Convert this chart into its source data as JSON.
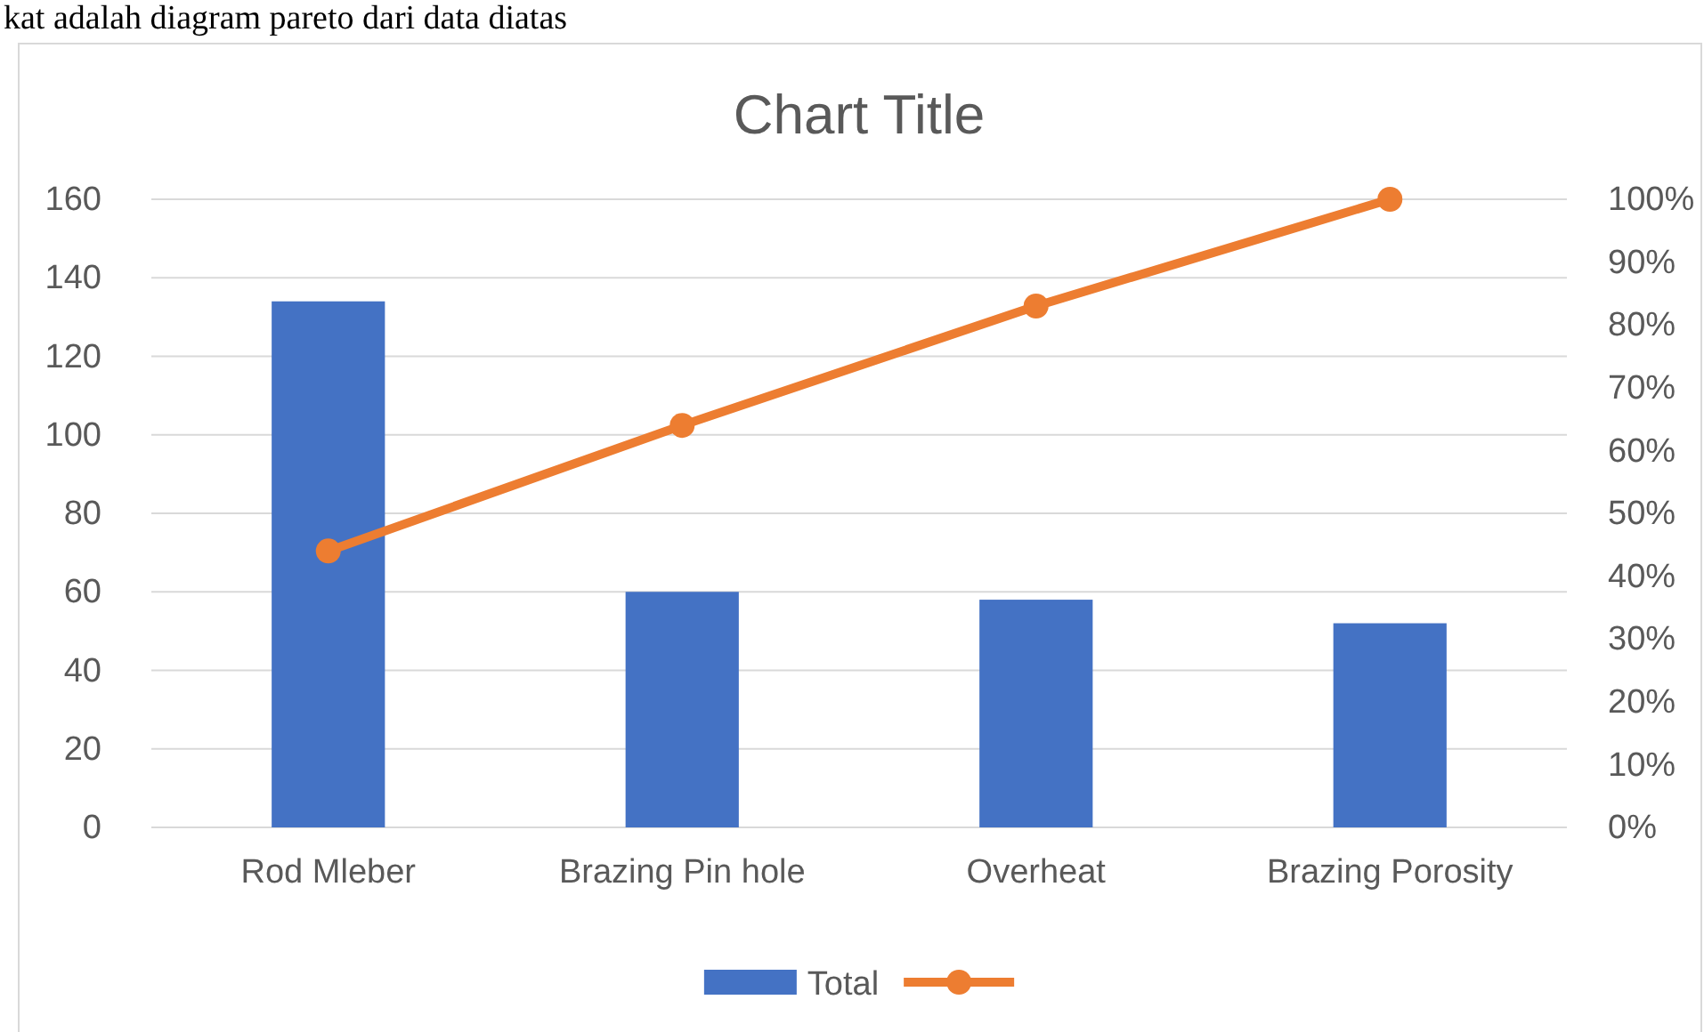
{
  "chart_data": {
    "type": "bar",
    "title": "Chart Title",
    "annotations": [
      "kat adalah diagram pareto dari data diatas"
    ],
    "categories": [
      "Rod Mleber",
      "Brazing Pin hole",
      "Overheat",
      "Brazing Porosity"
    ],
    "series": [
      {
        "name": "Total",
        "color": "#4472c4",
        "values": [
          134,
          60,
          58,
          52
        ]
      },
      {
        "type": "line",
        "axis": "y2",
        "color": "#ed7d31",
        "marker": "circle",
        "values": [
          44,
          64,
          83,
          100
        ]
      }
    ],
    "ylim": [
      0,
      160
    ],
    "yticks": [
      0,
      20,
      40,
      60,
      80,
      100,
      120,
      140,
      160
    ],
    "y2lim": [
      0,
      100
    ],
    "y2ticks": [
      {
        "value": 0,
        "label": "0%"
      },
      {
        "value": 10,
        "label": "10%"
      },
      {
        "value": 20,
        "label": "20%"
      },
      {
        "value": 30,
        "label": "30%"
      },
      {
        "value": 40,
        "label": "40%"
      },
      {
        "value": 50,
        "label": "50%"
      },
      {
        "value": 60,
        "label": "60%"
      },
      {
        "value": 70,
        "label": "70%"
      },
      {
        "value": 80,
        "label": "80%"
      },
      {
        "value": 90,
        "label": "90%"
      },
      {
        "value": 100,
        "label": "100%"
      }
    ],
    "grid": "y",
    "legend": "bottom"
  }
}
